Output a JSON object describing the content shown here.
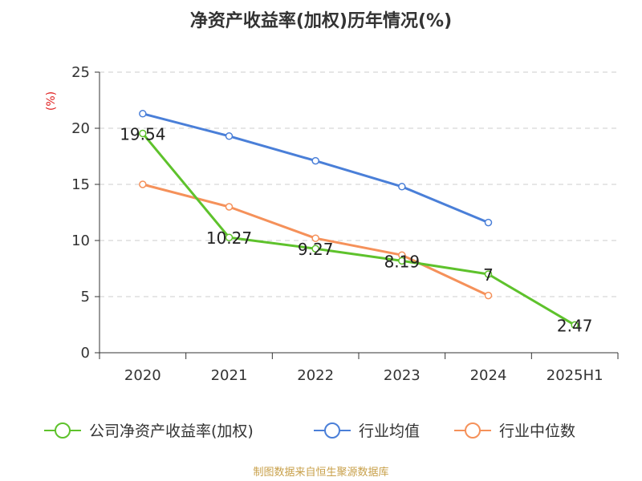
{
  "chart_data": {
    "type": "line",
    "title": "净资产收益率(加权)历年情况(%)",
    "ylabel": "(%)",
    "ylim": [
      0,
      25
    ],
    "yticks": [
      0,
      5,
      10,
      15,
      20,
      25
    ],
    "categories": [
      "2020",
      "2021",
      "2022",
      "2023",
      "2024",
      "2025H1"
    ],
    "grid": true,
    "legend_position": "bottom",
    "series": [
      {
        "name": "公司净资产收益率(加权)",
        "color": "#5ec22c",
        "values": [
          19.54,
          10.27,
          9.27,
          8.19,
          7,
          2.47
        ],
        "labels": [
          "19.54",
          "10.27",
          "9.27",
          "8.19",
          "7",
          "2.47"
        ]
      },
      {
        "name": "行业均值",
        "color": "#4a7fd8",
        "values": [
          21.3,
          19.3,
          17.1,
          14.8,
          11.6,
          null
        ]
      },
      {
        "name": "行业中位数",
        "color": "#f5915a",
        "values": [
          15.0,
          13.0,
          10.2,
          8.7,
          5.1,
          null
        ]
      }
    ]
  },
  "source": "制图数据来自恒生聚源数据库"
}
